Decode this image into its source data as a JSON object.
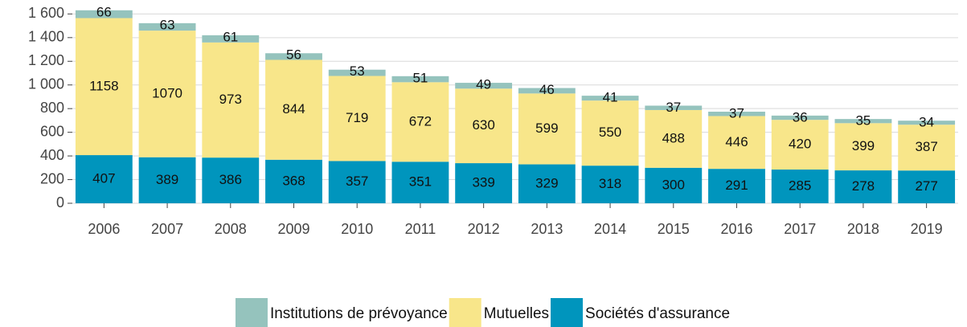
{
  "chart_data": {
    "type": "stacked_bar",
    "categories": [
      "2006",
      "2007",
      "2008",
      "2009",
      "2010",
      "2011",
      "2012",
      "2013",
      "2014",
      "2015",
      "2016",
      "2017",
      "2018",
      "2019"
    ],
    "series": [
      {
        "name": "Sociétés d'assurance",
        "color": "#0095bd",
        "values": [
          407,
          389,
          386,
          368,
          357,
          351,
          339,
          329,
          318,
          300,
          291,
          285,
          278,
          277
        ]
      },
      {
        "name": "Mutuelles",
        "color": "#f8e68a",
        "values": [
          1158,
          1070,
          973,
          844,
          719,
          672,
          630,
          599,
          550,
          488,
          446,
          420,
          399,
          387
        ]
      },
      {
        "name": "Institutions de prévoyance",
        "color": "#95c3bd",
        "values": [
          66,
          63,
          61,
          56,
          53,
          51,
          49,
          46,
          41,
          37,
          37,
          36,
          35,
          34
        ]
      }
    ],
    "legend_order": [
      2,
      1,
      0
    ],
    "ylim": [
      0,
      1650
    ],
    "yticks": [
      0,
      200,
      400,
      600,
      800,
      {
        "value": 1000,
        "label": "1 000"
      },
      {
        "value": 1200,
        "label": "1 200"
      },
      {
        "value": 1400,
        "label": "1 400"
      },
      {
        "value": 1600,
        "label": "1 600"
      }
    ],
    "grid": true,
    "legend": "bottom"
  }
}
